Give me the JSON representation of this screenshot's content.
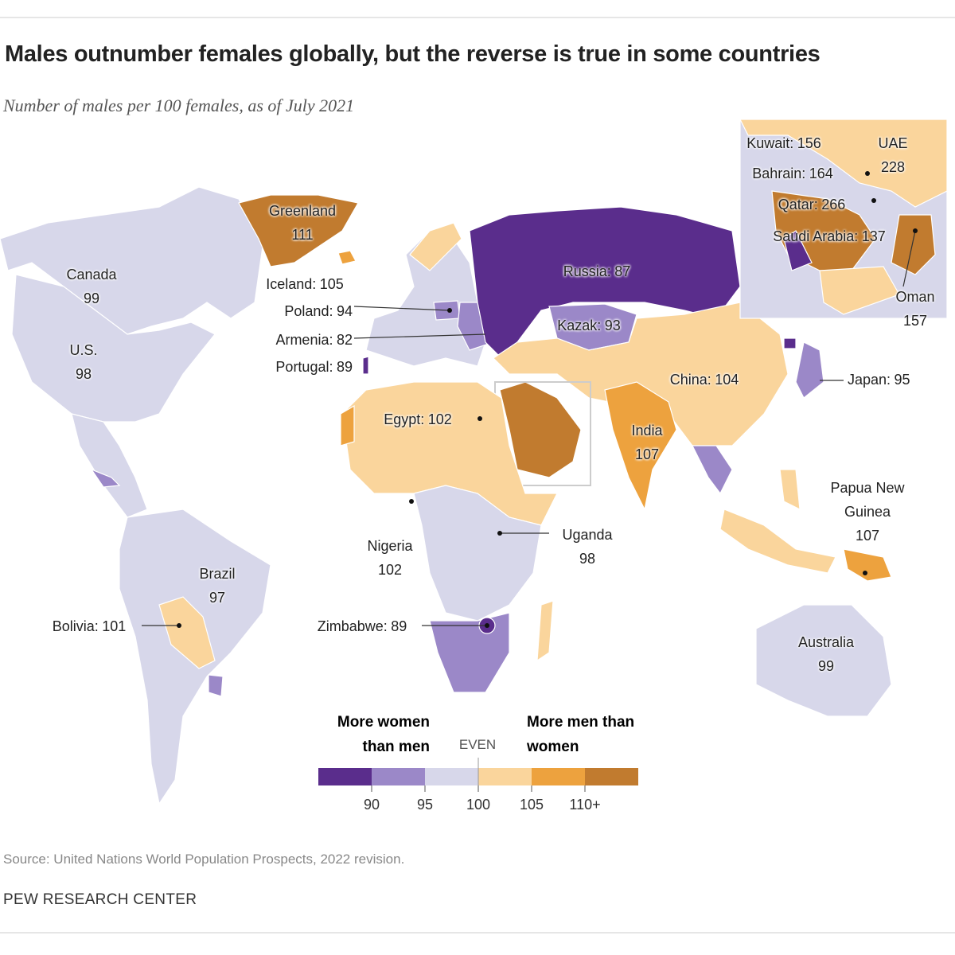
{
  "header": {
    "title": "Males outnumber females globally, but the reverse is true in some countries",
    "subtitle": "Number of males per 100 females, as of July 2021"
  },
  "labels": [
    {
      "name": "Greenland",
      "value": 111
    },
    {
      "name": "Canada",
      "value": 99
    },
    {
      "name": "U.S.",
      "value": 98
    },
    {
      "name": "Iceland:",
      "value": 105
    },
    {
      "name": "Poland:",
      "value": 94
    },
    {
      "name": "Armenia:",
      "value": 82
    },
    {
      "name": "Portugal:",
      "value": 89
    },
    {
      "name": "Russia:",
      "value": 87
    },
    {
      "name": "Kazak:",
      "value": 93
    },
    {
      "name": "China:",
      "value": 104
    },
    {
      "name": "Japan:",
      "value": 95
    },
    {
      "name": "India",
      "value": 107
    },
    {
      "name": "Egypt:",
      "value": 102
    },
    {
      "name": "Nigeria",
      "value": 102
    },
    {
      "name": "Uganda",
      "value": 98
    },
    {
      "name": "Brazil",
      "value": 97
    },
    {
      "name": "Bolivia:",
      "value": 101
    },
    {
      "name": "Zimbabwe:",
      "value": 89
    },
    {
      "name": "Papua New Guinea",
      "value": 107
    },
    {
      "name": "Australia",
      "value": 99
    },
    {
      "name": "Kuwait:",
      "value": 156
    },
    {
      "name": "UAE",
      "value": 228
    },
    {
      "name": "Bahrain:",
      "value": 164
    },
    {
      "name": "Qatar:",
      "value": 266
    },
    {
      "name": "Saudi Arabia:",
      "value": 137
    },
    {
      "name": "Oman",
      "value": 157
    }
  ],
  "legend": {
    "left_heading": "More women than men",
    "even": "EVEN",
    "right_heading": "More men than women",
    "colors": [
      "#5a2d8c",
      "#9b88c8",
      "#d7d7ea",
      "#fad59c",
      "#eda23e",
      "#c17b2f"
    ],
    "ticks": [
      90,
      95,
      100,
      105,
      {
        "value": 110,
        "label": "110+"
      }
    ]
  },
  "footer": {
    "source": "Source: United Nations World Population Prospects, 2022 revision.",
    "org": "PEW RESEARCH CENTER"
  }
}
